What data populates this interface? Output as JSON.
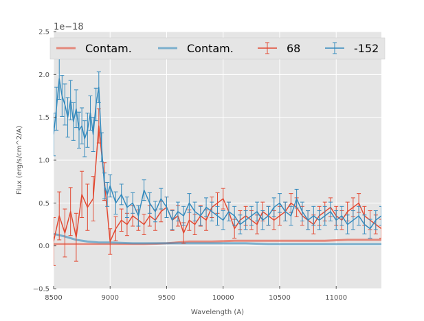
{
  "chart_data": {
    "type": "line",
    "title": "",
    "xlabel": "Wavelength (A)",
    "ylabel": "Flux (erg/s/cm^2/A)",
    "offset_text": "1e−18",
    "xlim": [
      8500,
      11400
    ],
    "ylim": [
      -0.5,
      2.5
    ],
    "xticks": [
      8500,
      9000,
      9500,
      10000,
      10500,
      11000
    ],
    "xtick_labels": [
      "8500",
      "9000",
      "9500",
      "10000",
      "10500",
      "11000"
    ],
    "yticks": [
      -0.5,
      0.0,
      0.5,
      1.0,
      1.5,
      2.0,
      2.5
    ],
    "ytick_labels": [
      "−0.5",
      "0.0",
      "0.5",
      "1.0",
      "1.5",
      "2.0",
      "2.5"
    ],
    "grid": true,
    "legend_position": "top",
    "series": [
      {
        "name": "Contam.",
        "kind": "line",
        "color": "#E24A33",
        "x": [
          8500,
          8700,
          8900,
          9100,
          9300,
          9500,
          9700,
          9900,
          10100,
          10300,
          10500,
          10700,
          10900,
          11100,
          11300,
          11400
        ],
        "y": [
          0.02,
          0.02,
          0.02,
          0.02,
          0.02,
          0.03,
          0.05,
          0.05,
          0.06,
          0.06,
          0.06,
          0.06,
          0.06,
          0.07,
          0.07,
          0.07
        ]
      },
      {
        "name": "Contam.",
        "kind": "line",
        "color": "#348ABD",
        "x": [
          8500,
          8600,
          8700,
          8800,
          8900,
          9000,
          9200,
          9400,
          9600,
          9800,
          10000,
          10200,
          10400,
          10600,
          10800,
          11000,
          11200,
          11400
        ],
        "y": [
          0.14,
          0.11,
          0.07,
          0.05,
          0.04,
          0.04,
          0.03,
          0.03,
          0.03,
          0.03,
          0.03,
          0.03,
          0.02,
          0.02,
          0.02,
          0.02,
          0.02,
          0.02
        ]
      },
      {
        "name": "68",
        "kind": "errorbar",
        "color": "#E24A33",
        "x": [
          8500,
          8550,
          8600,
          8650,
          8700,
          8750,
          8800,
          8850,
          8900,
          8950,
          9000,
          9050,
          9100,
          9150,
          9200,
          9250,
          9300,
          9350,
          9400,
          9450,
          9500,
          9550,
          9600,
          9650,
          9700,
          9750,
          9800,
          9850,
          9900,
          9950,
          10000,
          10050,
          10100,
          10150,
          10200,
          10250,
          10300,
          10350,
          10400,
          10450,
          10500,
          10550,
          10600,
          10650,
          10700,
          10750,
          10800,
          10850,
          10900,
          10950,
          11000,
          11050,
          11100,
          11150,
          11200,
          11250,
          11300,
          11350,
          11400
        ],
        "y": [
          0.05,
          0.35,
          0.15,
          0.4,
          0.1,
          0.6,
          0.45,
          0.55,
          1.4,
          0.75,
          0.05,
          0.2,
          0.3,
          0.25,
          0.35,
          0.3,
          0.25,
          0.35,
          0.3,
          0.4,
          0.45,
          0.3,
          0.35,
          0.15,
          0.3,
          0.25,
          0.35,
          0.3,
          0.45,
          0.5,
          0.55,
          0.4,
          0.2,
          0.3,
          0.35,
          0.3,
          0.25,
          0.4,
          0.35,
          0.3,
          0.35,
          0.4,
          0.5,
          0.45,
          0.35,
          0.3,
          0.25,
          0.35,
          0.4,
          0.45,
          0.35,
          0.3,
          0.4,
          0.45,
          0.5,
          0.35,
          0.3,
          0.25,
          0.2
        ],
        "err": [
          0.28,
          0.28,
          0.28,
          0.28,
          0.28,
          0.27,
          0.27,
          0.26,
          0.2,
          0.22,
          0.15,
          0.14,
          0.13,
          0.13,
          0.12,
          0.12,
          0.12,
          0.12,
          0.12,
          0.12,
          0.12,
          0.12,
          0.12,
          0.12,
          0.12,
          0.12,
          0.12,
          0.12,
          0.12,
          0.12,
          0.12,
          0.11,
          0.11,
          0.11,
          0.11,
          0.11,
          0.11,
          0.11,
          0.11,
          0.11,
          0.11,
          0.11,
          0.11,
          0.11,
          0.11,
          0.11,
          0.11,
          0.11,
          0.11,
          0.11,
          0.11,
          0.11,
          0.11,
          0.11,
          0.11,
          0.11,
          0.11,
          0.11,
          0.11
        ]
      },
      {
        "name": "-152",
        "kind": "errorbar",
        "color": "#348ABD",
        "x": [
          8500,
          8525,
          8550,
          8575,
          8600,
          8625,
          8650,
          8675,
          8700,
          8725,
          8750,
          8775,
          8800,
          8825,
          8850,
          8875,
          8900,
          8925,
          8950,
          8975,
          9000,
          9050,
          9100,
          9150,
          9200,
          9250,
          9300,
          9350,
          9400,
          9450,
          9500,
          9550,
          9600,
          9650,
          9700,
          9750,
          9800,
          9850,
          9900,
          9950,
          10000,
          10050,
          10100,
          10150,
          10200,
          10250,
          10300,
          10350,
          10400,
          10450,
          10500,
          10550,
          10600,
          10650,
          10700,
          10750,
          10800,
          10850,
          10900,
          10950,
          11000,
          11050,
          11100,
          11150,
          11200,
          11250,
          11300,
          11350,
          11400
        ],
        "y": [
          1.3,
          1.6,
          1.95,
          1.75,
          1.65,
          1.5,
          1.7,
          1.45,
          1.6,
          1.35,
          1.4,
          1.25,
          1.35,
          1.55,
          1.3,
          1.65,
          1.85,
          1.15,
          0.7,
          0.6,
          0.7,
          0.5,
          0.6,
          0.45,
          0.5,
          0.35,
          0.65,
          0.5,
          0.4,
          0.55,
          0.45,
          0.3,
          0.4,
          0.35,
          0.5,
          0.4,
          0.35,
          0.45,
          0.4,
          0.35,
          0.3,
          0.4,
          0.35,
          0.25,
          0.3,
          0.35,
          0.4,
          0.3,
          0.35,
          0.45,
          0.5,
          0.4,
          0.35,
          0.55,
          0.4,
          0.3,
          0.35,
          0.3,
          0.35,
          0.4,
          0.3,
          0.35,
          0.25,
          0.3,
          0.35,
          0.25,
          0.2,
          0.3,
          0.35
        ],
        "err": [
          0.25,
          0.25,
          0.24,
          0.24,
          0.24,
          0.23,
          0.23,
          0.22,
          0.22,
          0.21,
          0.21,
          0.21,
          0.2,
          0.2,
          0.2,
          0.19,
          0.18,
          0.17,
          0.15,
          0.14,
          0.13,
          0.13,
          0.12,
          0.12,
          0.12,
          0.12,
          0.12,
          0.12,
          0.12,
          0.12,
          0.12,
          0.11,
          0.11,
          0.11,
          0.11,
          0.11,
          0.11,
          0.11,
          0.11,
          0.11,
          0.11,
          0.11,
          0.11,
          0.11,
          0.11,
          0.11,
          0.11,
          0.11,
          0.11,
          0.11,
          0.11,
          0.11,
          0.11,
          0.11,
          0.11,
          0.11,
          0.11,
          0.11,
          0.11,
          0.11,
          0.11,
          0.11,
          0.11,
          0.11,
          0.11,
          0.11,
          0.11,
          0.11,
          0.11
        ]
      }
    ]
  }
}
